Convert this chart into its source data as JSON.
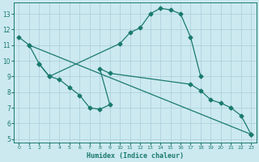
{
  "xlabel": "Humidex (Indice chaleur)",
  "xlim": [
    -0.5,
    23.5
  ],
  "ylim": [
    4.8,
    13.7
  ],
  "yticks": [
    5,
    6,
    7,
    8,
    9,
    10,
    11,
    12,
    13
  ],
  "xticks": [
    0,
    1,
    2,
    3,
    4,
    5,
    6,
    7,
    8,
    9,
    10,
    11,
    12,
    13,
    14,
    15,
    16,
    17,
    18,
    19,
    20,
    21,
    22,
    23
  ],
  "bg_color": "#cce9f0",
  "line_color": "#1a7a6e",
  "grid_color": "#aacdd8",
  "curve1_x": [
    0,
    1,
    2,
    3,
    10,
    11,
    12,
    13,
    14,
    15,
    16,
    17,
    18
  ],
  "curve1_y": [
    11.5,
    11.0,
    9.8,
    9.0,
    11.1,
    11.8,
    12.1,
    13.0,
    13.35,
    13.25,
    13.0,
    11.5,
    9.0
  ],
  "curve2_x": [
    2,
    3,
    4,
    5,
    6,
    7,
    8,
    9,
    8,
    9,
    17,
    18,
    19,
    20,
    21,
    22,
    23
  ],
  "curve2_y": [
    9.8,
    9.0,
    8.8,
    8.3,
    7.8,
    7.0,
    6.9,
    7.2,
    9.5,
    9.2,
    8.5,
    8.1,
    7.5,
    7.3,
    7.0,
    6.5,
    5.3
  ],
  "curve3_x": [
    1,
    23
  ],
  "curve3_y": [
    11.0,
    5.3
  ]
}
